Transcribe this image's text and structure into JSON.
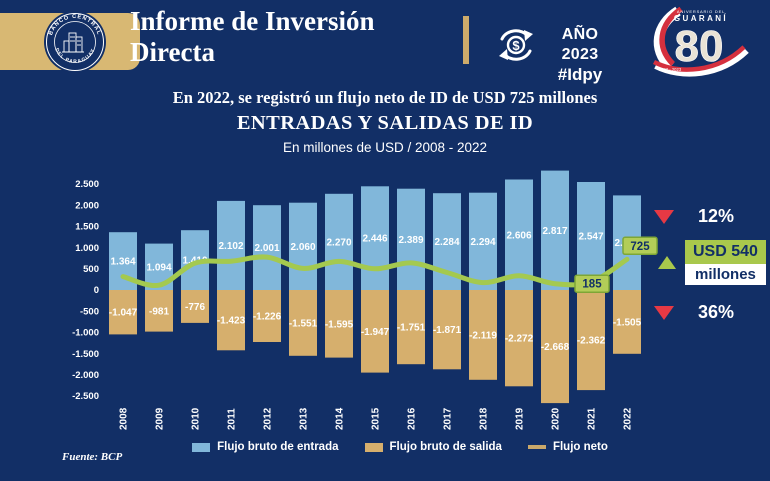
{
  "colors": {
    "background": "#122f66",
    "inflow_bar": "#81b7da",
    "outflow_bar": "#d6af6d",
    "net_line": "#a4c94f",
    "net_label_box_fill": "#b2cd58",
    "net_label_box_border": "#7da636",
    "gold": "#d8b873",
    "red": "#e63944",
    "navy_text": "#122f66"
  },
  "header": {
    "title_line1": "Informe de Inversión",
    "title_line2": "Directa",
    "seal": {
      "top": "BANCO CENTRAL",
      "bottom": "DEL PARAGUAY"
    },
    "year_badge": {
      "year": "AÑO 2023",
      "hashtag": "#Idpy"
    },
    "anniversary": {
      "top": "ANIVERSARIO DEL",
      "name": "GUARANÍ",
      "number": "80",
      "years": "1943 - 2023"
    }
  },
  "headline": "En 2022, se registró un flujo neto de ID de USD 725 millones",
  "chart_data": {
    "type": "bar",
    "title": "ENTRADAS Y SALIDAS DE ID",
    "subtitle": "En millones de USD / 2008 - 2022",
    "categories": [
      "2008",
      "2009",
      "2010",
      "2011",
      "2012",
      "2013",
      "2014",
      "2015",
      "2016",
      "2017",
      "2018",
      "2019",
      "2020",
      "2021",
      "2022"
    ],
    "ylim": [
      -2500,
      2500
    ],
    "ytick_step": 500,
    "ytick_labels": [
      "2.500",
      "2.000",
      "1.500",
      "1.000",
      "500",
      "0",
      "-500",
      "-1.000",
      "-1.500",
      "-2.000",
      "-2.500"
    ],
    "grid": false,
    "legend_position": "bottom",
    "series": [
      {
        "name": "Flujo bruto de entrada",
        "type": "bar",
        "color": "#81b7da",
        "values": [
          1364,
          1094,
          1410,
          2102,
          2001,
          2060,
          2270,
          2446,
          2389,
          2284,
          2294,
          2606,
          2817,
          2547,
          2230
        ],
        "labels": [
          "1.364",
          "1.094",
          "1.410",
          "2.102",
          "2.001",
          "2.060",
          "2.270",
          "2.446",
          "2.389",
          "2.284",
          "2.294",
          "2.606",
          "2.817",
          "2.547",
          "2.230"
        ]
      },
      {
        "name": "Flujo bruto de salida",
        "type": "bar",
        "color": "#d6af6d",
        "values": [
          -1047,
          -981,
          -776,
          -1423,
          -1226,
          -1551,
          -1595,
          -1947,
          -1751,
          -1871,
          -2119,
          -2272,
          -2668,
          -2362,
          -1505
        ],
        "labels": [
          "-1.047",
          "-981",
          "-776",
          "-1.423",
          "-1.226",
          "-1.551",
          "-1.595",
          "-1.947",
          "-1.751",
          "-1.871",
          "-2.119",
          "-2.272",
          "-2.668",
          "-2.362",
          "-1.505"
        ]
      },
      {
        "name": "Flujo neto",
        "type": "line",
        "color": "#a4c94f",
        "legend_swatch_color": "#c9a86b",
        "values": [
          317,
          113,
          634,
          679,
          775,
          509,
          675,
          499,
          638,
          413,
          175,
          334,
          149,
          185,
          725
        ],
        "point_labels": [
          {
            "index": 13,
            "text": "185"
          },
          {
            "index": 14,
            "text": "725"
          }
        ]
      }
    ]
  },
  "annotations": {
    "inflow_change": {
      "direction": "down",
      "label": "12%"
    },
    "net_flow": {
      "direction": "up",
      "amount": "USD 540",
      "unit": "millones"
    },
    "outflow_change": {
      "direction": "down",
      "label": "36%"
    }
  },
  "source": "Fuente: BCP"
}
